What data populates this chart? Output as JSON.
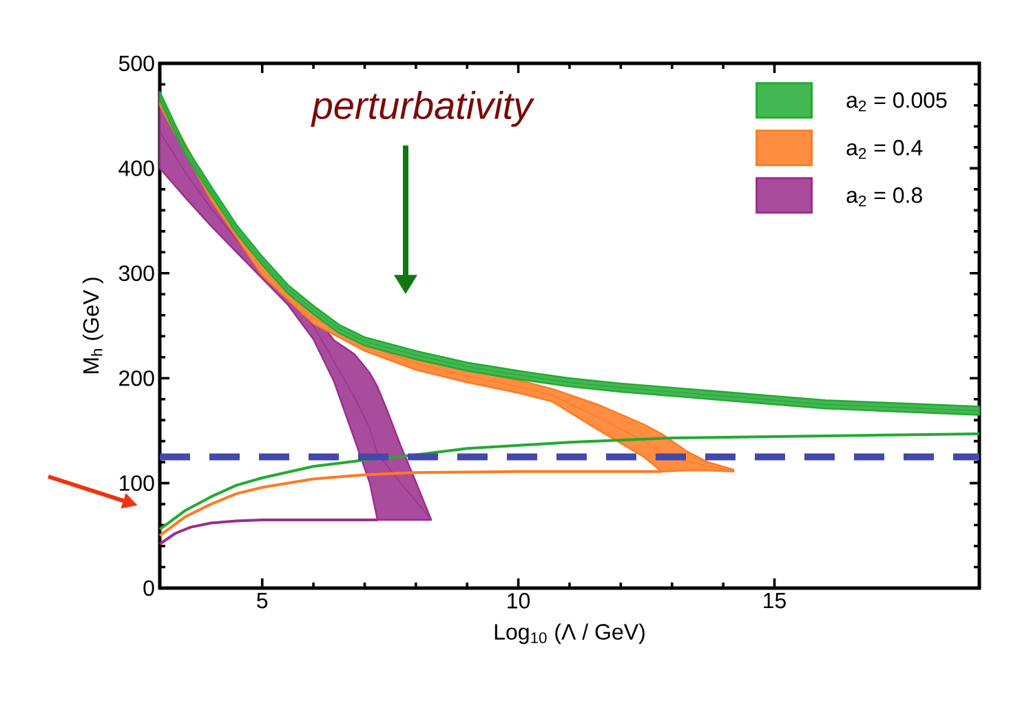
{
  "chart_data": {
    "type": "line",
    "xlabel": "Log$_{10}$ (Λ / GeV)",
    "ylabel": "M$_{h}$  (GeV )",
    "xlim": [
      3,
      19
    ],
    "ylim": [
      0,
      500
    ],
    "xticks": [
      5,
      10,
      15
    ],
    "yticks": [
      0,
      100,
      200,
      300,
      400,
      500
    ],
    "legend": "top right",
    "annotations": [
      "perturbativity"
    ],
    "ref_lines": [
      {
        "axis": "y",
        "value": 125,
        "color": "#4448a8",
        "line_style": "dashed"
      }
    ],
    "series": [
      {
        "name": "a$_{2}$ = 0.005",
        "color": "#22aa33",
        "x": [
          3,
          3.5,
          4,
          4.5,
          5,
          5.5,
          6,
          6.5,
          7,
          8,
          9,
          10,
          11,
          12,
          13,
          14,
          15,
          16,
          17,
          18,
          19
        ],
        "values": [
          469,
          417,
          379,
          342,
          312,
          285,
          265,
          247,
          235,
          222,
          211,
          203,
          196,
          191,
          187,
          183,
          179,
          175,
          173,
          171,
          169
        ],
        "lower": [
          465,
          413,
          375,
          338,
          308,
          281,
          261,
          243,
          231,
          218,
          207,
          199,
          192,
          187,
          183,
          179,
          175,
          171,
          169,
          167,
          165
        ],
        "upper": [
          473,
          421,
          383,
          346,
          316,
          289,
          269,
          251,
          239,
          226,
          215,
          207,
          200,
          195,
          191,
          187,
          183,
          179,
          177,
          175,
          173
        ]
      },
      {
        "color": "#22aa33",
        "x": [
          3,
          3.5,
          4,
          4.5,
          5,
          6,
          7,
          8,
          9,
          10,
          11,
          13,
          16,
          19
        ],
        "values": [
          56,
          74,
          87,
          98,
          105,
          116,
          122,
          127,
          133,
          136,
          139,
          143,
          145,
          147
        ]
      },
      {
        "name": "a$_{2}$ = 0.4",
        "color": "#ff7a22",
        "x": [
          3,
          4,
          5,
          6,
          7,
          8,
          9,
          10,
          10.65,
          11.55,
          12.45,
          12.8,
          13.3,
          13.7,
          14.2
        ],
        "values": [
          464,
          374,
          303,
          257,
          232,
          214,
          202,
          192,
          184,
          163,
          140,
          129,
          121,
          116,
          112
        ],
        "lower": [
          460,
          370,
          298,
          252,
          226,
          208,
          196,
          186,
          178,
          151,
          125,
          111,
          112,
          112,
          111
        ],
        "upper": [
          468,
          378,
          308,
          262,
          238,
          220,
          208,
          198,
          190,
          175,
          156,
          147,
          130,
          120,
          113
        ]
      },
      {
        "color": "#ff7a22",
        "x": [
          3,
          3.5,
          4,
          4.5,
          5,
          6,
          7,
          8,
          10,
          12.8
        ],
        "values": [
          50,
          68,
          80,
          90,
          96,
          104,
          108,
          110,
          111,
          111
        ]
      },
      {
        "name": "a$_{2}$ = 0.8",
        "color": "#9b2d8c",
        "x": [
          3,
          3.5,
          4,
          4.5,
          5,
          5.5,
          6,
          6.4,
          6.8,
          7.1,
          7.25,
          7.45,
          7.7,
          8,
          8.3
        ],
        "values": [
          435,
          396,
          362,
          332,
          304,
          278,
          250,
          216,
          182,
          152,
          128,
          116,
          100,
          83,
          65
        ],
        "lower": [
          400,
          372,
          345,
          320,
          295,
          270,
          237,
          197,
          142,
          100,
          65,
          65,
          65,
          65,
          65
        ],
        "upper": [
          470,
          420,
          380,
          345,
          312,
          285,
          262,
          236,
          223,
          205,
          192,
          168,
          136,
          101,
          65
        ]
      },
      {
        "color": "#9b2d8c",
        "x": [
          3,
          3.3,
          3.6,
          4,
          4.5,
          5,
          7.25
        ],
        "values": [
          42,
          52,
          58,
          62,
          64,
          65,
          65
        ]
      }
    ]
  }
}
